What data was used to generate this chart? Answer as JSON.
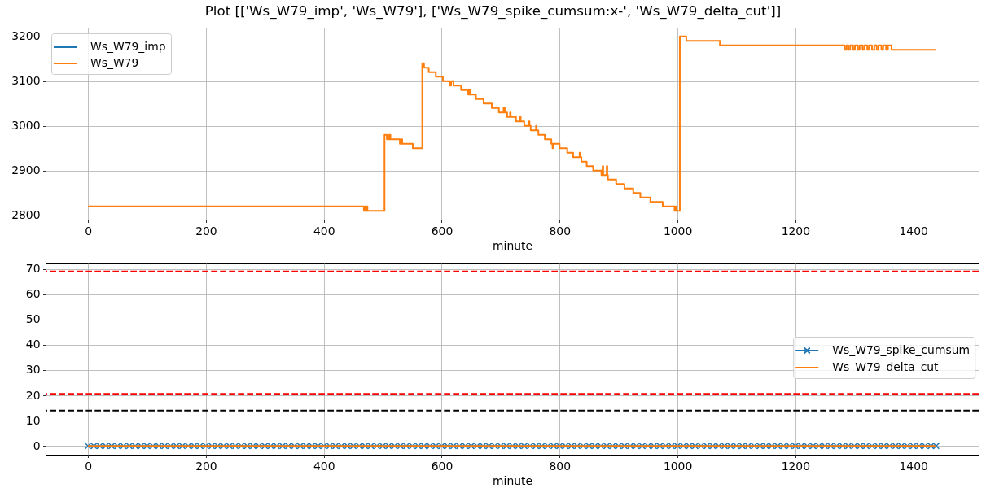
{
  "chart_data": [
    {
      "type": "step",
      "title": "Plot [['Ws_W79_imp', 'Ws_W79'], ['Ws_W79_spike_cumsum:x-', 'Ws_W79_delta_cut']]",
      "xlabel": "minute",
      "x": [
        0,
        468,
        470,
        471,
        473,
        474,
        503,
        507,
        511,
        513,
        529,
        531,
        533,
        551,
        567,
        570,
        578,
        590,
        602,
        614,
        616,
        620,
        633,
        645,
        647,
        649,
        658,
        671,
        685,
        697,
        705,
        707,
        711,
        716,
        717,
        726,
        733,
        734,
        740,
        748,
        749,
        751,
        760,
        761,
        764,
        775,
        786,
        788,
        789,
        800,
        813,
        823,
        834,
        835,
        837,
        846,
        857,
        871,
        873,
        874,
        880,
        881,
        882,
        896,
        910,
        925,
        937,
        954,
        975,
        995,
        997,
        998,
        1004,
        1015,
        1072,
        1284,
        1287,
        1290,
        1293,
        1298,
        1301,
        1306,
        1309,
        1314,
        1317,
        1322,
        1325,
        1330,
        1334,
        1338,
        1341,
        1346,
        1349,
        1354,
        1357,
        1363,
        1439
      ],
      "series": [
        {
          "name": "Ws_W79_imp",
          "color": "#1f77b4",
          "values": [
            null,
            null,
            null,
            null,
            null,
            null,
            null,
            null,
            null,
            null,
            null,
            null,
            null,
            null,
            null,
            null,
            null,
            null,
            null,
            null,
            null,
            null,
            null,
            null,
            null,
            null,
            null,
            null,
            null,
            null,
            null,
            null,
            null,
            null,
            null,
            null,
            null,
            null,
            null,
            null,
            null,
            null,
            null,
            null,
            null,
            null,
            null,
            null,
            null,
            null,
            null,
            null,
            null,
            null,
            null,
            null,
            null,
            null,
            null,
            null,
            null,
            null,
            null,
            null,
            null,
            null,
            null,
            null,
            null,
            null,
            null,
            null,
            null,
            null,
            null,
            null,
            null,
            null,
            null,
            null,
            null,
            null,
            null,
            null,
            null,
            null,
            null,
            null,
            null,
            null,
            null,
            null,
            null,
            null,
            null,
            null,
            null
          ]
        },
        {
          "name": "Ws_W79",
          "color": "#ff7f0e",
          "values": [
            2820,
            2810,
            2820,
            2810,
            2820,
            2810,
            2980,
            2970,
            2980,
            2970,
            2960,
            2970,
            2960,
            2950,
            3140,
            3130,
            3120,
            3110,
            3100,
            3090,
            3100,
            3090,
            3080,
            3070,
            3080,
            3070,
            3060,
            3050,
            3040,
            3030,
            3040,
            3030,
            3020,
            3030,
            3020,
            3010,
            3020,
            3010,
            3000,
            3010,
            3000,
            2990,
            3000,
            2990,
            2980,
            2970,
            2960,
            2950,
            2960,
            2950,
            2940,
            2930,
            2940,
            2930,
            2920,
            2910,
            2900,
            2890,
            2910,
            2890,
            2910,
            2890,
            2880,
            2870,
            2860,
            2850,
            2840,
            2830,
            2820,
            2810,
            2820,
            2810,
            3200,
            3190,
            3180,
            3170,
            3180,
            3170,
            3180,
            3170,
            3180,
            3170,
            3180,
            3170,
            3180,
            3170,
            3180,
            3170,
            3180,
            3170,
            3180,
            3170,
            3180,
            3170,
            3180,
            3170,
            3170
          ]
        }
      ],
      "xlim": [
        -72,
        1511
      ],
      "ylim": [
        2790.5,
        3219.5
      ],
      "xticks": [
        0,
        200,
        400,
        600,
        800,
        1000,
        1200,
        1400
      ],
      "yticks": [
        2800,
        2900,
        3000,
        3100,
        3200
      ],
      "grid": true,
      "legend": "top left"
    },
    {
      "type": "line",
      "xlabel": "minute",
      "x": [
        0,
        10,
        20,
        30,
        40,
        50,
        60,
        70,
        80,
        90,
        100,
        110,
        120,
        130,
        140,
        150,
        160,
        170,
        180,
        190,
        200,
        210,
        220,
        230,
        240,
        250,
        260,
        270,
        280,
        290,
        300,
        310,
        320,
        330,
        340,
        350,
        360,
        370,
        380,
        390,
        400,
        410,
        420,
        430,
        440,
        450,
        460,
        470,
        480,
        490,
        500,
        510,
        520,
        530,
        540,
        550,
        560,
        570,
        580,
        590,
        600,
        610,
        620,
        630,
        640,
        650,
        660,
        670,
        680,
        690,
        700,
        710,
        720,
        730,
        740,
        750,
        760,
        770,
        780,
        790,
        800,
        810,
        820,
        830,
        840,
        850,
        860,
        870,
        880,
        890,
        900,
        910,
        920,
        930,
        940,
        950,
        960,
        970,
        980,
        990,
        1000,
        1010,
        1020,
        1030,
        1040,
        1050,
        1060,
        1070,
        1080,
        1090,
        1100,
        1110,
        1120,
        1130,
        1140,
        1150,
        1160,
        1170,
        1180,
        1190,
        1200,
        1210,
        1220,
        1230,
        1240,
        1250,
        1260,
        1270,
        1280,
        1290,
        1300,
        1310,
        1320,
        1330,
        1340,
        1350,
        1360,
        1370,
        1380,
        1390,
        1400,
        1410,
        1420,
        1430,
        1439
      ],
      "series": [
        {
          "name": "Ws_W79_spike_cumsum",
          "color": "#1f77b4",
          "marker": "cross",
          "values": [
            0,
            0,
            0,
            0,
            0,
            0,
            0,
            0,
            0,
            0,
            0,
            0,
            0,
            0,
            0,
            0,
            0,
            0,
            0,
            0,
            0,
            0,
            0,
            0,
            0,
            0,
            0,
            0,
            0,
            0,
            0,
            0,
            0,
            0,
            0,
            0,
            0,
            0,
            0,
            0,
            0,
            0,
            0,
            0,
            0,
            0,
            0,
            0,
            0,
            0,
            0,
            0,
            0,
            0,
            0,
            0,
            0,
            0,
            0,
            0,
            0,
            0,
            0,
            0,
            0,
            0,
            0,
            0,
            0,
            0,
            0,
            0,
            0,
            0,
            0,
            0,
            0,
            0,
            0,
            0,
            0,
            0,
            0,
            0,
            0,
            0,
            0,
            0,
            0,
            0,
            0,
            0,
            0,
            0,
            0,
            0,
            0,
            0,
            0,
            0,
            0,
            0,
            0,
            0,
            0,
            0,
            0,
            0,
            0,
            0,
            0,
            0,
            0,
            0,
            0,
            0,
            0,
            0,
            0,
            0,
            0,
            0,
            0,
            0,
            0,
            0,
            0,
            0,
            0,
            0,
            0,
            0,
            0,
            0,
            0,
            0,
            0,
            0,
            0,
            0,
            0,
            0,
            0,
            0,
            0
          ]
        },
        {
          "name": "Ws_W79_delta_cut",
          "color": "#ff7f0e",
          "x": [
            0,
            1439
          ],
          "values": [
            0,
            0
          ]
        }
      ],
      "xlim": [
        -72,
        1511
      ],
      "ylim": [
        -3.45,
        72.45
      ],
      "xticks": [
        0,
        200,
        400,
        600,
        800,
        1000,
        1200,
        1400
      ],
      "yticks": [
        0,
        10,
        20,
        30,
        40,
        50,
        60,
        70
      ],
      "ref_lines": [
        {
          "axis": "y",
          "value": 69,
          "color": "#ff0000",
          "line_style": "dashed"
        },
        {
          "axis": "y",
          "value": 20.6,
          "color": "#ff0000",
          "line_style": "dashed"
        },
        {
          "axis": "y",
          "value": 14,
          "color": "#000000",
          "line_style": "dashed"
        }
      ],
      "grid": true,
      "legend": "right"
    }
  ]
}
